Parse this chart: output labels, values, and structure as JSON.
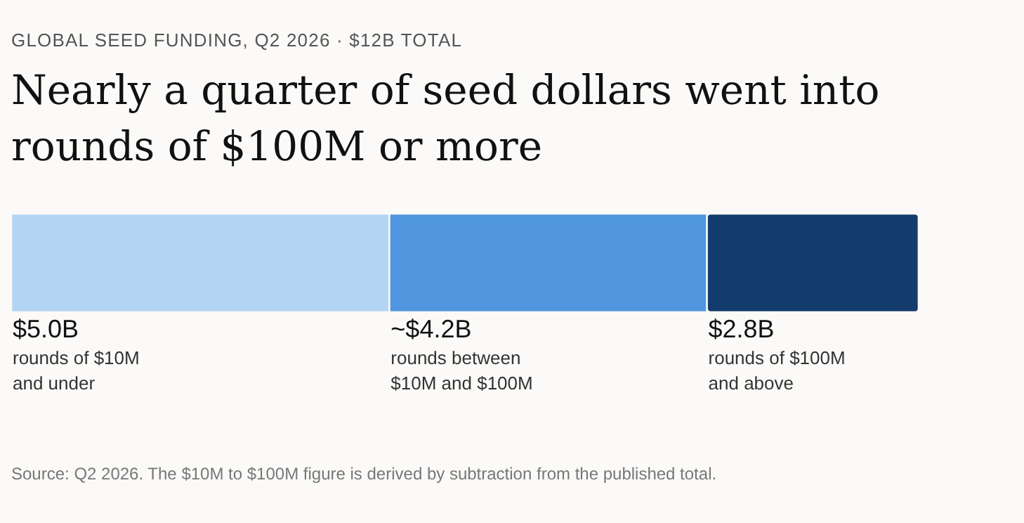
{
  "chart_data": {
    "type": "bar",
    "orientation": "horizontal",
    "stacked": true,
    "subtitle": "GLOBAL SEED FUNDING, Q2 2026 · $12B TOTAL",
    "title": "Nearly a quarter of seed dollars went into rounds of $100M or more",
    "categories": [
      null
    ],
    "series": [
      {
        "name": "rounds of $10M and under",
        "color": "#b4d4f3",
        "values": [
          5.0
        ],
        "value_labels": [
          "$5.0B"
        ]
      },
      {
        "name": "rounds between $10M and $100M",
        "color": "#4f96de",
        "values": [
          4.2
        ],
        "value_labels": [
          "~$4.2B"
        ]
      },
      {
        "name": "rounds of $100M and above",
        "color": "#133c6c",
        "values": [
          2.8
        ],
        "value_labels": [
          "$2.8B"
        ]
      }
    ],
    "tick_labels": false,
    "legend": false,
    "annotations": [
      "Source: Q2 2026. The $10M to $100M figure is derived by subtraction from the published total."
    ]
  }
}
